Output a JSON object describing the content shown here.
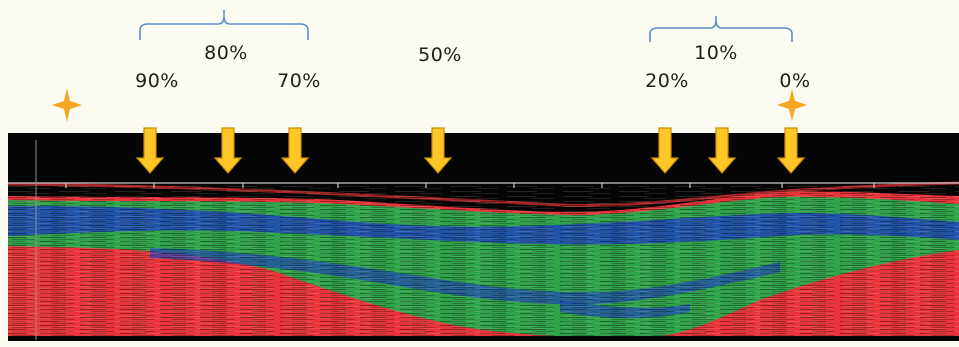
{
  "labels": {
    "group_80": "80%",
    "group_50": "50%",
    "group_10": "10%",
    "p90": "90%",
    "p70": "70%",
    "p20": "20%",
    "p0": "0%"
  },
  "colors": {
    "background": "#fcfbf1",
    "band_black": "#050505",
    "red": "#e8343a",
    "green": "#2fa24a",
    "blue": "#1d47b8",
    "arrow_fill": "#ffc627",
    "arrow_stroke": "#c98e06",
    "bracket": "#5b8fc9",
    "star": "#f5a623"
  },
  "icons": [
    "down-arrow-icon",
    "sparkle-star-icon",
    "curly-bracket-icon"
  ]
}
